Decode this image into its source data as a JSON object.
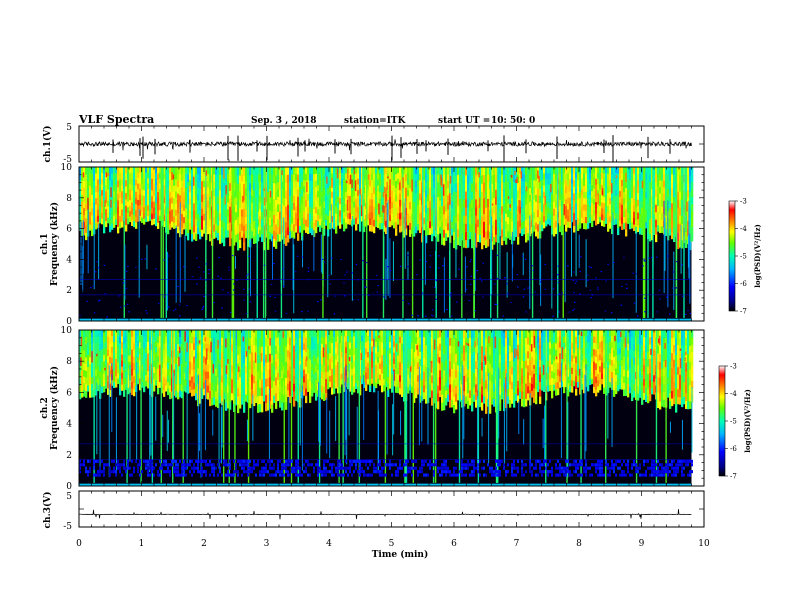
{
  "header": {
    "title": "VLF Spectra",
    "date": "Sep. 3 , 2018",
    "station": "station=ITK",
    "start_label": "start UT =",
    "start_value": "10: 50: 0"
  },
  "chart_data": [
    {
      "type": "line",
      "name": "ch.1 waveform",
      "ylabel": "ch.1(V)",
      "y_tick_labels": [
        "5",
        "-5"
      ],
      "ylim": [
        -5,
        5
      ],
      "xlim": [
        0,
        10
      ],
      "baseline": 0,
      "data_extent_min": 9.8,
      "spike_times": [
        0.55,
        0.98,
        1.02,
        1.22,
        1.78,
        2.38,
        2.55,
        2.85,
        3.0,
        3.5,
        3.62,
        4.1,
        4.35,
        5.0,
        5.15,
        5.4,
        5.55,
        5.9,
        6.55,
        6.8,
        7.15,
        7.65,
        8.4,
        8.55,
        9.1,
        9.45
      ]
    },
    {
      "type": "heatmap",
      "name": "ch.1 spectrogram",
      "ylabel_line1": "ch.1",
      "ylabel_line2": "Frequency (kHz)",
      "y_tick_labels": [
        "0",
        "2",
        "4",
        "6",
        "8",
        "10"
      ],
      "ylim": [
        0,
        10
      ],
      "xlim": [
        0,
        10
      ],
      "colorbar": {
        "label": "log(PSD)(V²/Hz)",
        "ticks": [
          "-3",
          "-4",
          "-5",
          "-6",
          "-7"
        ],
        "range": [
          -7,
          -3
        ]
      }
    },
    {
      "type": "heatmap",
      "name": "ch.2 spectrogram",
      "ylabel_line1": "ch.2",
      "ylabel_line2": "Frequency (kHz)",
      "y_tick_labels": [
        "0",
        "2",
        "4",
        "6",
        "8",
        "10"
      ],
      "ylim": [
        0,
        10
      ],
      "xlim": [
        0,
        10
      ],
      "colorbar": {
        "label": "log(PSD)(V²/Hz)",
        "ticks": [
          "-3",
          "-4",
          "-5",
          "-6",
          "-7"
        ],
        "range": [
          -7,
          -3
        ]
      }
    },
    {
      "type": "line",
      "name": "ch.3 waveform",
      "ylabel": "ch.3(V)",
      "y_tick_labels": [
        "5",
        "-5"
      ],
      "ylim": [
        -5,
        5
      ],
      "xlim": [
        0,
        10
      ],
      "baseline": -1.5,
      "data_extent_min": 9.8,
      "spike_times": []
    }
  ],
  "x_axis": {
    "label": "Time (min)",
    "tick_labels": [
      "0",
      "1",
      "2",
      "3",
      "4",
      "5",
      "6",
      "7",
      "8",
      "9",
      "10"
    ],
    "range": [
      0,
      10
    ]
  },
  "colors": {
    "colormap": [
      "#000000",
      "#000080",
      "#0000ff",
      "#00b4ff",
      "#00ffb4",
      "#64ff00",
      "#ffff00",
      "#ff8000",
      "#ff0000",
      "#ffffff"
    ]
  }
}
